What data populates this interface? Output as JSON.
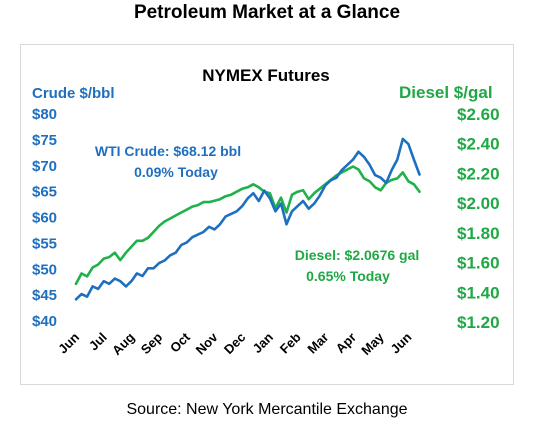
{
  "page": {
    "title": "Petroleum Market at a Glance",
    "source": "Source: New York Mercantile Exchange"
  },
  "colors": {
    "crude": "#1f6fc0",
    "diesel": "#1fb24a",
    "crude_text": "#1f6fc0",
    "diesel_text": "#1fa845"
  },
  "chart_data": {
    "type": "line",
    "title": "NYMEX Futures",
    "y_left_label": "Crude $/bbl",
    "y_right_label": "Diesel $/gal",
    "y_left_ticks": [
      "$40",
      "$45",
      "$50",
      "$55",
      "$60",
      "$65",
      "$70",
      "$75",
      "$80"
    ],
    "y_right_ticks": [
      "$1.20",
      "$1.40",
      "$1.60",
      "$1.80",
      "$2.00",
      "$2.20",
      "$2.40",
      "$2.60"
    ],
    "ylim_left": [
      40,
      80
    ],
    "ylim_right": [
      1.2,
      2.6
    ],
    "x_ticks": [
      "Jun",
      "Jul",
      "Aug",
      "Sep",
      "Oct",
      "Nov",
      "Dec",
      "Jan",
      "Feb",
      "Mar",
      "Apr",
      "May",
      "Jun"
    ],
    "xlim": [
      0,
      12.6
    ],
    "grid": false,
    "annotations": {
      "crude_line1": "WTI Crude: $68.12 bbl",
      "crude_line2": "0.09% Today",
      "diesel_line1": "Diesel: $2.0676 gal",
      "diesel_line2": "0.65% Today"
    },
    "series": [
      {
        "axis": "left",
        "x": [
          0,
          0.2,
          0.4,
          0.6,
          0.8,
          1.0,
          1.2,
          1.4,
          1.6,
          1.8,
          2.0,
          2.2,
          2.4,
          2.6,
          2.8,
          3.0,
          3.2,
          3.4,
          3.6,
          3.8,
          4.0,
          4.2,
          4.4,
          4.6,
          4.8,
          5.0,
          5.2,
          5.4,
          5.6,
          5.8,
          6.0,
          6.2,
          6.4,
          6.6,
          6.8,
          7.0,
          7.2,
          7.4,
          7.6,
          7.8,
          8.0,
          8.2,
          8.4,
          8.6,
          8.8,
          9.0,
          9.2,
          9.4,
          9.6,
          9.8,
          10.0,
          10.2,
          10.4,
          10.6,
          10.8,
          11.0,
          11.2,
          11.4,
          11.6,
          11.8,
          12.0,
          12.2,
          12.4
        ],
        "values": [
          44.0,
          45.0,
          44.5,
          46.5,
          46.0,
          47.5,
          47.0,
          48.0,
          47.5,
          46.5,
          47.5,
          49.0,
          48.5,
          50.0,
          50.0,
          51.0,
          51.5,
          52.5,
          53.0,
          54.5,
          55.0,
          56.0,
          56.5,
          57.0,
          58.0,
          57.5,
          58.5,
          60.0,
          60.5,
          61.0,
          62.0,
          63.5,
          64.5,
          63.0,
          65.0,
          63.5,
          61.0,
          62.5,
          58.5,
          61.0,
          62.0,
          63.0,
          61.5,
          62.5,
          64.0,
          66.0,
          67.0,
          67.5,
          69.0,
          70.0,
          71.0,
          72.5,
          71.5,
          70.0,
          68.0,
          67.5,
          66.5,
          69.0,
          71.0,
          75.0,
          74.0,
          71.0,
          68.12
        ]
      },
      {
        "axis": "right",
        "x": [
          0,
          0.2,
          0.4,
          0.6,
          0.8,
          1.0,
          1.2,
          1.4,
          1.6,
          1.8,
          2.0,
          2.2,
          2.4,
          2.6,
          2.8,
          3.0,
          3.2,
          3.4,
          3.6,
          3.8,
          4.0,
          4.2,
          4.4,
          4.6,
          4.8,
          5.0,
          5.2,
          5.4,
          5.6,
          5.8,
          6.0,
          6.2,
          6.4,
          6.6,
          6.8,
          7.0,
          7.2,
          7.4,
          7.6,
          7.8,
          8.0,
          8.2,
          8.4,
          8.6,
          8.8,
          9.0,
          9.2,
          9.4,
          9.6,
          9.8,
          10.0,
          10.2,
          10.4,
          10.6,
          10.8,
          11.0,
          11.2,
          11.4,
          11.6,
          11.8,
          12.0,
          12.2,
          12.4
        ],
        "values": [
          1.45,
          1.52,
          1.5,
          1.56,
          1.58,
          1.62,
          1.63,
          1.66,
          1.61,
          1.66,
          1.7,
          1.74,
          1.74,
          1.76,
          1.8,
          1.84,
          1.87,
          1.89,
          1.91,
          1.93,
          1.95,
          1.97,
          1.98,
          2.0,
          2.0,
          2.01,
          2.02,
          2.04,
          2.05,
          2.07,
          2.09,
          2.1,
          2.12,
          2.1,
          2.07,
          2.06,
          1.96,
          2.03,
          1.93,
          2.05,
          2.07,
          2.08,
          2.02,
          2.06,
          2.09,
          2.12,
          2.15,
          2.18,
          2.2,
          2.22,
          2.24,
          2.22,
          2.16,
          2.14,
          2.1,
          2.08,
          2.13,
          2.15,
          2.16,
          2.2,
          2.14,
          2.12,
          2.07
        ]
      }
    ]
  }
}
